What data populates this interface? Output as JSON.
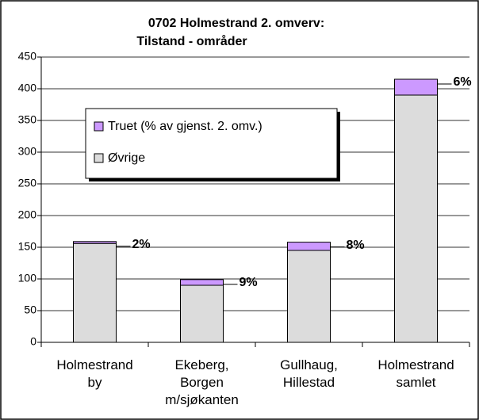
{
  "chart_data": {
    "type": "stacked_bar",
    "title": [
      "0702 Holmestrand 2. omverv:",
      "Tilstand - områder"
    ],
    "categories": [
      "Holmestrand\nby",
      "Ekeberg,\nBorgen\nm/sjøkanten",
      "Gullhaug,\nHillestad",
      "Holmestrand\nsamlet"
    ],
    "series": [
      {
        "name": "Øvrige",
        "color": "#dcdcdc",
        "values": [
          156,
          90,
          145,
          390
        ]
      },
      {
        "name": "Truet (% av gjenst. 2. omv.)",
        "color": "#cc99ff",
        "values": [
          3,
          9,
          13,
          25
        ]
      }
    ],
    "annotations": [
      "2%",
      "9%",
      "8%",
      "6%"
    ],
    "ylim": [
      0,
      450
    ],
    "yticks": [
      0,
      50,
      100,
      150,
      200,
      250,
      300,
      350,
      400,
      450
    ],
    "grid": true
  }
}
